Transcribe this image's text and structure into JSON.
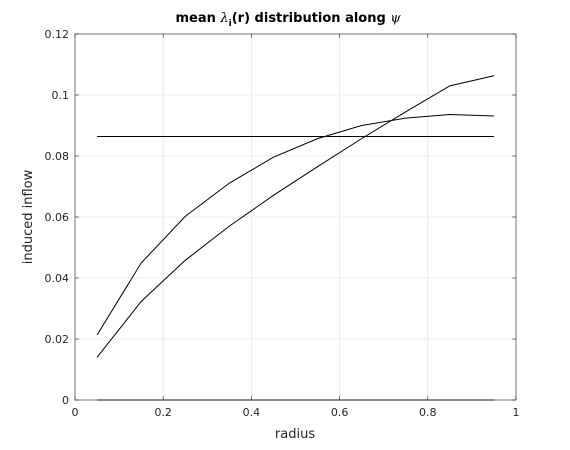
{
  "chart_data": {
    "type": "line",
    "title": "mean λi(r) distribution along ψ",
    "title_parts": {
      "pre": "mean ",
      "lambda": "λ",
      "sub": "i",
      "mid": "(r) distribution along ",
      "psi": "ψ"
    },
    "xlabel": "radius",
    "ylabel": "induced inflow",
    "xlim": [
      0,
      1
    ],
    "ylim": [
      0,
      0.12
    ],
    "xticks": [
      0,
      0.2,
      0.4,
      0.6,
      0.8,
      1
    ],
    "xtick_labels": [
      "0",
      "0.2",
      "0.4",
      "0.6",
      "0.8",
      "1"
    ],
    "yticks": [
      0,
      0.02,
      0.04,
      0.06,
      0.08,
      0.1,
      0.12
    ],
    "ytick_labels": [
      "0",
      "0.02",
      "0.04",
      "0.06",
      "0.08",
      "0.1",
      "0.12"
    ],
    "grid": true,
    "line_color": "#000000",
    "grid_color": "#e6e6e6",
    "series": [
      {
        "x": [
          0.05,
          0.15,
          0.25,
          0.35,
          0.45,
          0.55,
          0.65,
          0.75,
          0.85,
          0.95
        ],
        "values": [
          0.0213,
          0.0449,
          0.0602,
          0.0711,
          0.0796,
          0.0857,
          0.09,
          0.0924,
          0.0936,
          0.0931
        ]
      },
      {
        "x": [
          0.05,
          0.15,
          0.25,
          0.35,
          0.45,
          0.55,
          0.65,
          0.75,
          0.85,
          0.95
        ],
        "values": [
          0.014,
          0.0323,
          0.0458,
          0.057,
          0.0671,
          0.0765,
          0.0857,
          0.0945,
          0.103,
          0.1063
        ]
      },
      {
        "x": [
          0.05,
          0.95
        ],
        "values": [
          0.0864,
          0.0864
        ]
      },
      {
        "x": [
          0.05,
          0.95
        ],
        "values": [
          0.0,
          0.0
        ]
      }
    ]
  }
}
